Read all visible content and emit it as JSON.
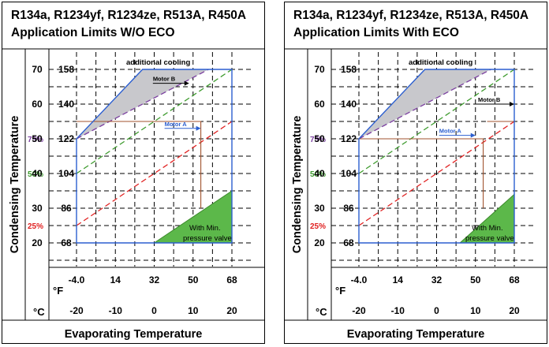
{
  "chart_data": [
    {
      "type": "area",
      "title_line1": "R134a, R1234yf, R1234ze, R513A, R450A",
      "title_line2": "Application Limits W/O ECO",
      "xlabel": "Evaporating Temperature",
      "ylabel": "Condensing Temperature",
      "x_unit_f": "°F",
      "x_unit_c": "°C",
      "x_ticks_f": [
        "-4.0",
        "14",
        "32",
        "50",
        "68"
      ],
      "x_ticks_c": [
        "-20",
        "-10",
        "0",
        "10",
        "20"
      ],
      "y_ticks_c": [
        "70",
        "60",
        "50",
        "40",
        "30",
        "20"
      ],
      "y_ticks_f": [
        "158",
        "140",
        "122",
        "104",
        "86",
        "68"
      ],
      "xlim_c": [
        -20,
        20
      ],
      "ylim_c": [
        20,
        70
      ],
      "envelope_c": [
        [
          -20,
          20
        ],
        [
          20,
          20
        ],
        [
          20,
          70
        ],
        [
          -3,
          70
        ],
        [
          -20,
          50
        ]
      ],
      "additional_cooling_label": "additional cooling",
      "additional_cooling_c": [
        [
          -20,
          50
        ],
        [
          -3,
          70
        ],
        [
          14,
          70
        ]
      ],
      "loading_lines": [
        {
          "label": "75%",
          "color": "#7b3fa0",
          "points_c": [
            [
              -20,
              50
            ],
            [
              14,
              70
            ]
          ]
        },
        {
          "label": "50%",
          "color": "#3c9a2c",
          "points_c": [
            [
              -20,
              40
            ],
            [
              20,
              70
            ]
          ]
        },
        {
          "label": "25%",
          "color": "#e02020",
          "points_c": [
            [
              -20,
              25
            ],
            [
              20,
              55
            ]
          ]
        }
      ],
      "motor_limits": [
        {
          "label": "Motor A",
          "arrow_at_c": [
            12,
            53
          ],
          "points_c": [
            [
              -20,
              55
            ],
            [
              12,
              55
            ],
            [
              12,
              30
            ]
          ]
        },
        {
          "label": "Motor B",
          "arrow_at_c": [
            9,
            66
          ],
          "points_c": []
        }
      ],
      "min_pressure_label_1": "With  Min.",
      "min_pressure_label_2": "pressure  valve",
      "min_pressure_region_c": [
        [
          0,
          20
        ],
        [
          20,
          20
        ],
        [
          20,
          35
        ]
      ]
    },
    {
      "type": "area",
      "title_line1": "R134a, R1234yf, R1234ze, R513A, R450A",
      "title_line2": "Application Limits With ECO",
      "xlabel": "Evaporating Temperature",
      "ylabel": "Condensing Temperature",
      "x_unit_f": "°F",
      "x_unit_c": "°C",
      "x_ticks_f": [
        "-4.0",
        "14",
        "32",
        "50",
        "68"
      ],
      "x_ticks_c": [
        "-20",
        "-10",
        "0",
        "10",
        "20"
      ],
      "y_ticks_c": [
        "70",
        "60",
        "50",
        "40",
        "30",
        "20"
      ],
      "y_ticks_f": [
        "158",
        "140",
        "122",
        "104",
        "86",
        "68"
      ],
      "xlim_c": [
        -20,
        20
      ],
      "ylim_c": [
        20,
        70
      ],
      "envelope_c": [
        [
          -20,
          20
        ],
        [
          20,
          20
        ],
        [
          20,
          70
        ],
        [
          -3,
          70
        ],
        [
          -20,
          50
        ]
      ],
      "additional_cooling_label": "additional cooling",
      "additional_cooling_c": [
        [
          -20,
          50
        ],
        [
          -3,
          70
        ],
        [
          14,
          70
        ]
      ],
      "loading_lines": [
        {
          "label": "75%",
          "color": "#7b3fa0",
          "points_c": [
            [
              -20,
              50
            ],
            [
              14,
              70
            ]
          ]
        },
        {
          "label": "50%",
          "color": "#3c9a2c",
          "points_c": [
            [
              -20,
              40
            ],
            [
              20,
              70
            ]
          ]
        },
        {
          "label": "25%",
          "color": "#e02020",
          "points_c": [
            [
              -20,
              25
            ],
            [
              20,
              55
            ]
          ]
        }
      ],
      "motor_limits": [
        {
          "label": "Motor A",
          "arrow_at_c": [
            10,
            51
          ],
          "points_c": [
            [
              -20,
              50
            ],
            [
              12,
              50
            ],
            [
              12,
              30
            ]
          ]
        },
        {
          "label": "Motor B",
          "arrow_at_c": [
            20,
            60
          ],
          "points_c": [
            [
              13,
              55
            ],
            [
              20,
              55
            ]
          ]
        }
      ],
      "min_pressure_label_1": "With  Min.",
      "min_pressure_label_2": "pressure  valve",
      "min_pressure_region_c": [
        [
          6,
          20
        ],
        [
          20,
          20
        ],
        [
          20,
          34
        ]
      ]
    }
  ]
}
